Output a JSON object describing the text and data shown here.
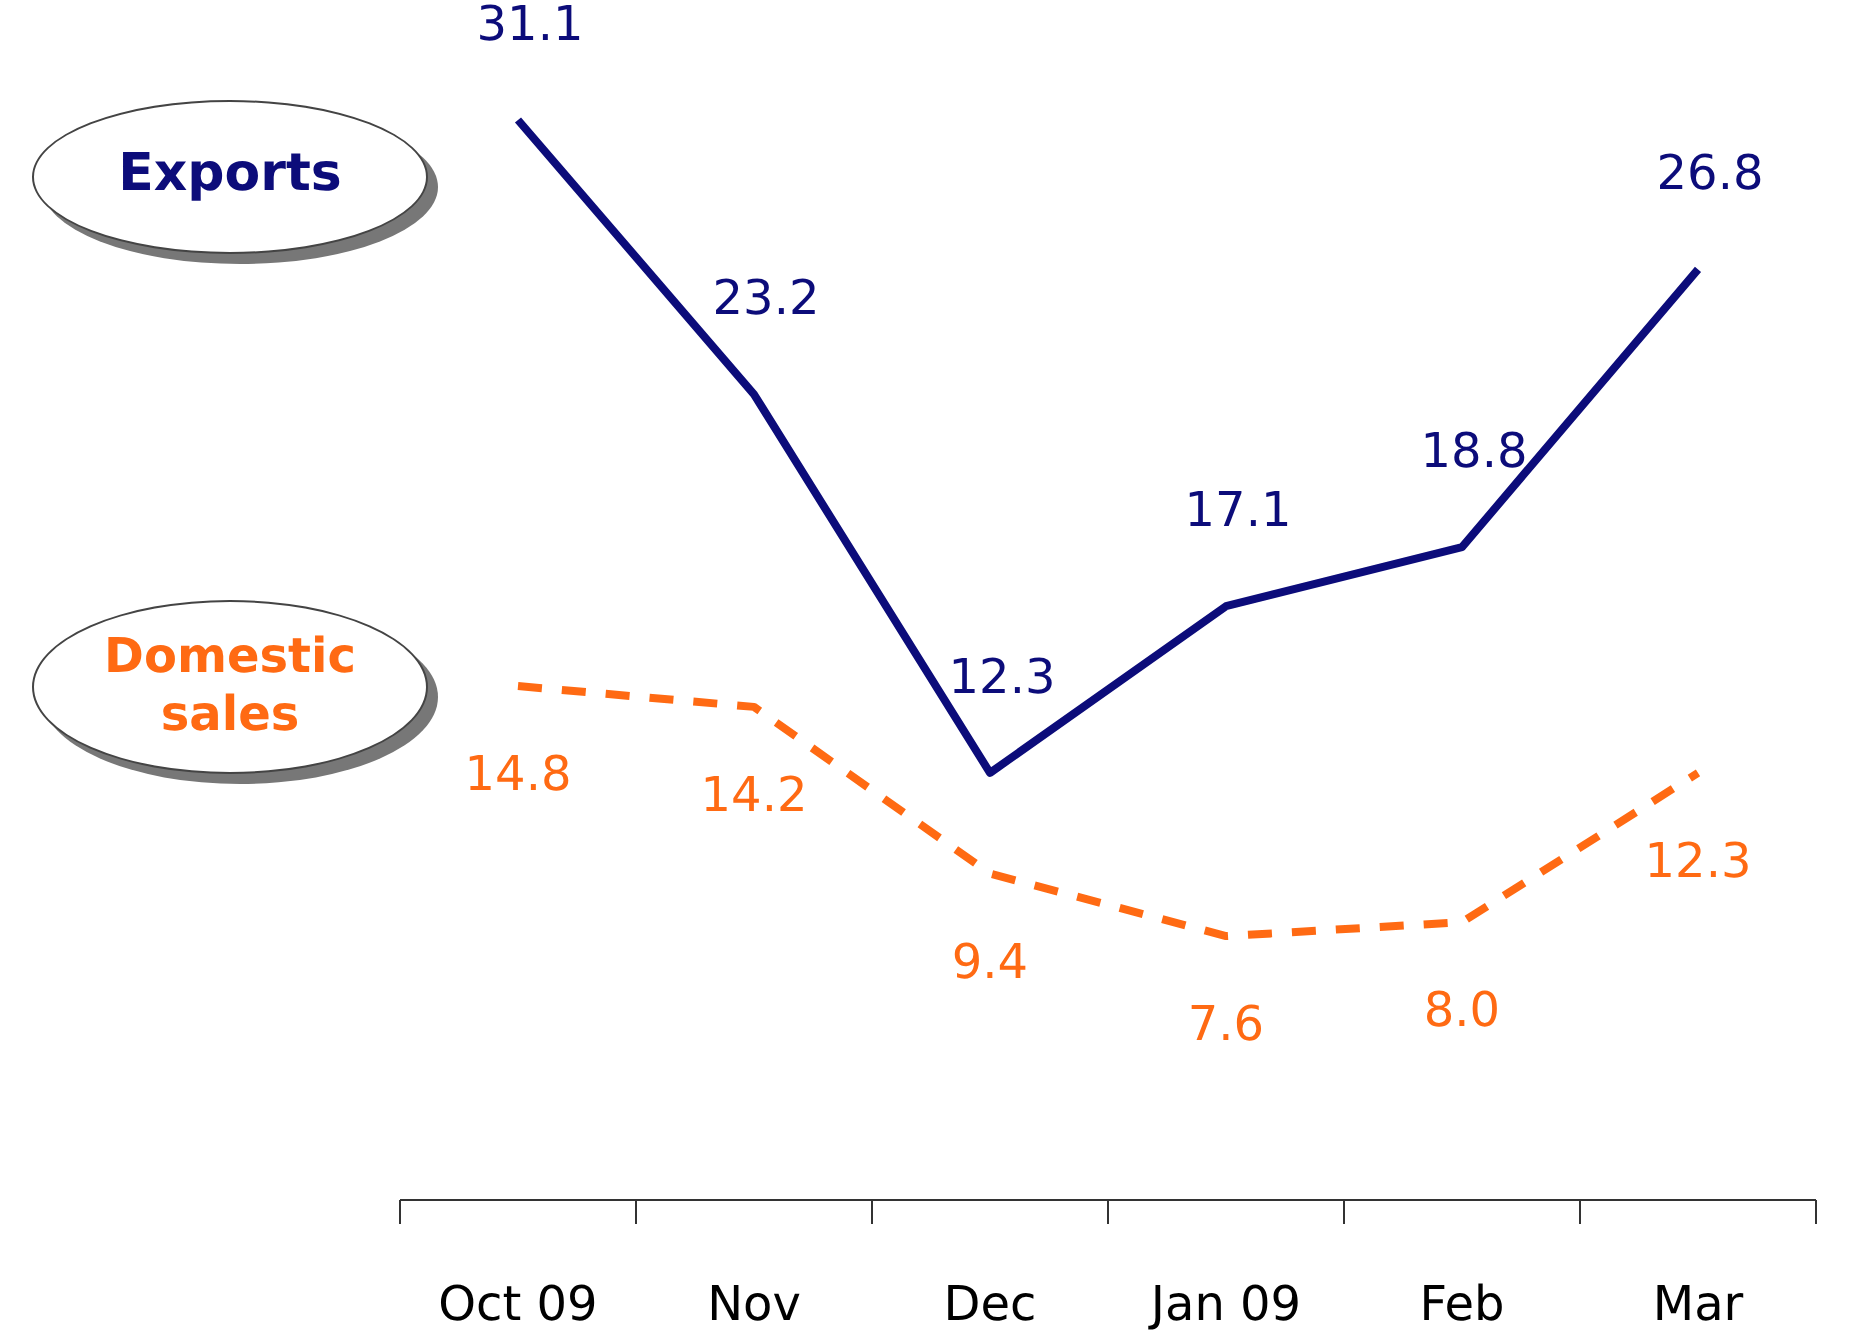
{
  "chart_data": {
    "type": "line",
    "categories": [
      "Oct 09",
      "Nov",
      "Dec",
      "Jan 09",
      "Feb",
      "Mar"
    ],
    "series": [
      {
        "name": "Exports",
        "color": "#0c0c7a",
        "values": [
          31.1,
          23.2,
          12.3,
          17.1,
          18.8,
          26.8
        ],
        "value_labels": [
          "31.1",
          "23.2",
          "12.3",
          "17.1",
          "18.8",
          "26.8"
        ],
        "line_style": "solid"
      },
      {
        "name": "Domestic sales",
        "color": "#ff6a13",
        "values": [
          14.8,
          14.2,
          9.4,
          7.6,
          8.0,
          12.3
        ],
        "value_labels": [
          "14.8",
          "14.2",
          "9.4",
          "7.6",
          "8.0",
          "12.3"
        ],
        "line_style": "dashed"
      }
    ],
    "marker": "none"
  }
}
